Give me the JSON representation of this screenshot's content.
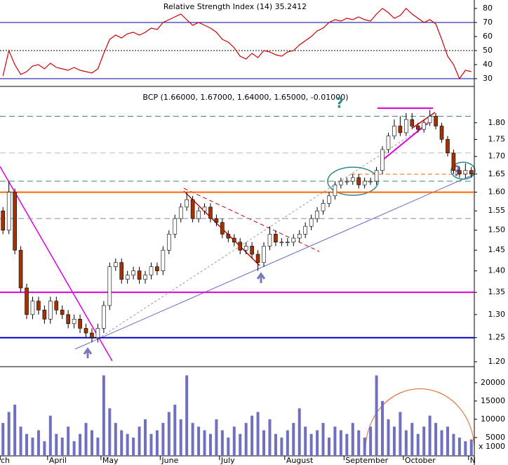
{
  "chart_data": [
    {
      "type": "line",
      "title": "Relative Strength Index (14) 35.2412",
      "values": [
        32,
        50,
        40,
        33,
        35,
        39,
        40,
        37,
        41,
        38,
        37,
        36,
        38,
        36,
        35,
        34,
        37,
        48,
        58,
        61,
        59,
        62,
        63,
        61,
        63,
        66,
        65,
        70,
        72,
        74,
        76,
        72,
        68,
        70,
        68,
        66,
        63,
        58,
        56,
        52,
        46,
        44,
        48,
        45,
        50,
        49,
        47,
        46,
        49,
        50,
        54,
        57,
        60,
        64,
        66,
        70,
        72,
        71,
        73,
        72,
        74,
        72,
        71,
        76,
        80,
        77,
        73,
        75,
        80,
        76,
        73,
        70,
        72,
        69,
        58,
        46,
        40,
        30,
        36,
        35
      ],
      "color": "#cc0000",
      "ylim": [
        25,
        86
      ],
      "yticks": [
        30,
        40,
        50,
        60,
        70,
        80
      ],
      "bands": [
        30,
        70
      ],
      "band_color": "#0000aa",
      "midline": 50
    },
    {
      "type": "candlestick",
      "title": "BCP (1.66000, 1.67000, 1.64000, 1.65000, -0.01000)",
      "open": [
        1.55,
        1.5,
        1.6,
        1.45,
        1.36,
        1.3,
        1.33,
        1.31,
        1.29,
        1.33,
        1.31,
        1.3,
        1.28,
        1.29,
        1.27,
        1.26,
        1.25,
        1.27,
        1.32,
        1.41,
        1.42,
        1.38,
        1.39,
        1.4,
        1.38,
        1.39,
        1.41,
        1.4,
        1.45,
        1.49,
        1.53,
        1.56,
        1.58,
        1.53,
        1.55,
        1.56,
        1.53,
        1.52,
        1.49,
        1.48,
        1.47,
        1.45,
        1.46,
        1.44,
        1.42,
        1.46,
        1.49,
        1.47,
        1.47,
        1.47,
        1.48,
        1.49,
        1.51,
        1.53,
        1.55,
        1.57,
        1.59,
        1.62,
        1.63,
        1.63,
        1.64,
        1.62,
        1.63,
        1.63,
        1.66,
        1.72,
        1.76,
        1.79,
        1.77,
        1.81,
        1.79,
        1.78,
        1.8,
        1.82,
        1.79,
        1.75,
        1.71,
        1.66,
        1.65,
        1.66
      ],
      "high": [
        1.56,
        1.63,
        1.61,
        1.46,
        1.37,
        1.34,
        1.34,
        1.32,
        1.34,
        1.34,
        1.32,
        1.31,
        1.3,
        1.3,
        1.28,
        1.27,
        1.28,
        1.33,
        1.42,
        1.43,
        1.43,
        1.4,
        1.41,
        1.41,
        1.4,
        1.42,
        1.42,
        1.46,
        1.5,
        1.54,
        1.57,
        1.6,
        1.59,
        1.56,
        1.57,
        1.57,
        1.54,
        1.53,
        1.5,
        1.49,
        1.48,
        1.47,
        1.47,
        1.45,
        1.47,
        1.51,
        1.5,
        1.48,
        1.48,
        1.49,
        1.5,
        1.52,
        1.54,
        1.56,
        1.58,
        1.6,
        1.63,
        1.64,
        1.64,
        1.65,
        1.65,
        1.64,
        1.64,
        1.67,
        1.73,
        1.77,
        1.81,
        1.82,
        1.83,
        1.83,
        1.8,
        1.81,
        1.84,
        1.83,
        1.8,
        1.76,
        1.72,
        1.67,
        1.68,
        1.67
      ],
      "low": [
        1.49,
        1.49,
        1.44,
        1.35,
        1.29,
        1.29,
        1.3,
        1.28,
        1.28,
        1.3,
        1.29,
        1.27,
        1.27,
        1.26,
        1.25,
        1.24,
        1.24,
        1.26,
        1.31,
        1.4,
        1.37,
        1.37,
        1.38,
        1.37,
        1.37,
        1.38,
        1.39,
        1.39,
        1.44,
        1.48,
        1.52,
        1.55,
        1.52,
        1.52,
        1.54,
        1.52,
        1.51,
        1.48,
        1.47,
        1.46,
        1.44,
        1.44,
        1.43,
        1.4,
        1.41,
        1.45,
        1.46,
        1.46,
        1.46,
        1.46,
        1.47,
        1.48,
        1.5,
        1.52,
        1.54,
        1.56,
        1.58,
        1.61,
        1.62,
        1.62,
        1.61,
        1.61,
        1.62,
        1.62,
        1.65,
        1.71,
        1.75,
        1.76,
        1.76,
        1.78,
        1.77,
        1.77,
        1.79,
        1.78,
        1.74,
        1.7,
        1.65,
        1.64,
        1.64,
        1.64
      ],
      "close": [
        1.5,
        1.6,
        1.45,
        1.36,
        1.3,
        1.33,
        1.31,
        1.29,
        1.33,
        1.31,
        1.3,
        1.28,
        1.29,
        1.27,
        1.26,
        1.25,
        1.27,
        1.32,
        1.41,
        1.42,
        1.38,
        1.39,
        1.4,
        1.38,
        1.39,
        1.41,
        1.4,
        1.45,
        1.49,
        1.53,
        1.56,
        1.58,
        1.53,
        1.55,
        1.56,
        1.53,
        1.52,
        1.49,
        1.48,
        1.47,
        1.45,
        1.46,
        1.44,
        1.42,
        1.46,
        1.49,
        1.47,
        1.47,
        1.47,
        1.48,
        1.49,
        1.51,
        1.53,
        1.55,
        1.57,
        1.59,
        1.62,
        1.63,
        1.63,
        1.64,
        1.62,
        1.63,
        1.63,
        1.66,
        1.72,
        1.76,
        1.79,
        1.77,
        1.81,
        1.79,
        1.78,
        1.8,
        1.82,
        1.79,
        1.75,
        1.71,
        1.66,
        1.65,
        1.66,
        1.65
      ],
      "up_color": "#ffffff",
      "down_color": "#a33200",
      "outline_color": "#000000",
      "ylim": [
        1.19,
        1.91
      ],
      "log_scale": true,
      "yticks": [
        {
          "value": 1.2,
          "label": "1.20"
        },
        1.25,
        {
          "value": 1.3,
          "label": "1.30"
        },
        1.35,
        {
          "value": 1.4,
          "label": "1.40"
        },
        1.45,
        {
          "value": 1.5,
          "label": "1.50"
        },
        1.55,
        {
          "value": 1.6,
          "label": "1.60"
        },
        1.65,
        {
          "value": 1.7,
          "label": "1.70"
        },
        1.75,
        {
          "value": 1.8,
          "label": "1.80"
        }
      ],
      "hlines": [
        {
          "value": 1.82,
          "color": "#3a8a7a",
          "dashed": true
        },
        {
          "value": 1.71,
          "color": "#bbbbbb",
          "dashed": true
        },
        {
          "value": 1.63,
          "color": "#3a8a7a",
          "dashed": true
        },
        {
          "value": 1.6,
          "color": "#ff6600",
          "dashed": false
        },
        {
          "value": 1.53,
          "color": "#8888aa",
          "dashed": true
        },
        {
          "value": 1.35,
          "color": "#dd00dd",
          "dashed": false
        },
        {
          "value": 1.25,
          "color": "#0000cc",
          "dashed": false
        }
      ],
      "annotations": [
        "?",
        "?"
      ]
    },
    {
      "type": "bar",
      "values": [
        9000,
        12000,
        14000,
        8000,
        6000,
        5000,
        7000,
        4000,
        11000,
        6000,
        5000,
        8000,
        4000,
        6000,
        9000,
        7000,
        5000,
        22000,
        13000,
        9000,
        7000,
        6000,
        5000,
        8000,
        10000,
        6000,
        7000,
        9000,
        12000,
        14000,
        10000,
        22000,
        9000,
        8000,
        7000,
        6000,
        10000,
        7000,
        5000,
        8000,
        6000,
        9000,
        11000,
        12000,
        7000,
        10000,
        6000,
        5000,
        7000,
        9000,
        13000,
        8000,
        6000,
        7000,
        9000,
        5000,
        8000,
        7000,
        6000,
        9000,
        7000,
        5000,
        8000,
        22000,
        15000,
        10000,
        8000,
        12000,
        7000,
        9000,
        6000,
        8000,
        11000,
        9000,
        7000,
        8000,
        6000,
        5000,
        4000,
        4500
      ],
      "color": "#7070c0",
      "ylim": [
        0,
        24000
      ],
      "yticks": [
        5000,
        10000,
        15000,
        20000
      ],
      "unit_label": "x 1000",
      "categories": [
        "March",
        null,
        null,
        null,
        null,
        null,
        null,
        null,
        "April",
        null,
        null,
        null,
        null,
        null,
        null,
        null,
        null,
        "May",
        null,
        null,
        null,
        null,
        null,
        null,
        null,
        null,
        null,
        "June",
        null,
        null,
        null,
        null,
        null,
        null,
        null,
        null,
        null,
        "July",
        null,
        null,
        null,
        null,
        null,
        null,
        null,
        null,
        null,
        null,
        "August",
        null,
        null,
        null,
        null,
        null,
        null,
        null,
        null,
        null,
        "September",
        null,
        null,
        null,
        null,
        null,
        null,
        null,
        null,
        null,
        "October",
        null,
        null,
        null,
        null,
        null,
        null,
        null,
        null,
        null,
        null,
        "N"
      ]
    }
  ]
}
